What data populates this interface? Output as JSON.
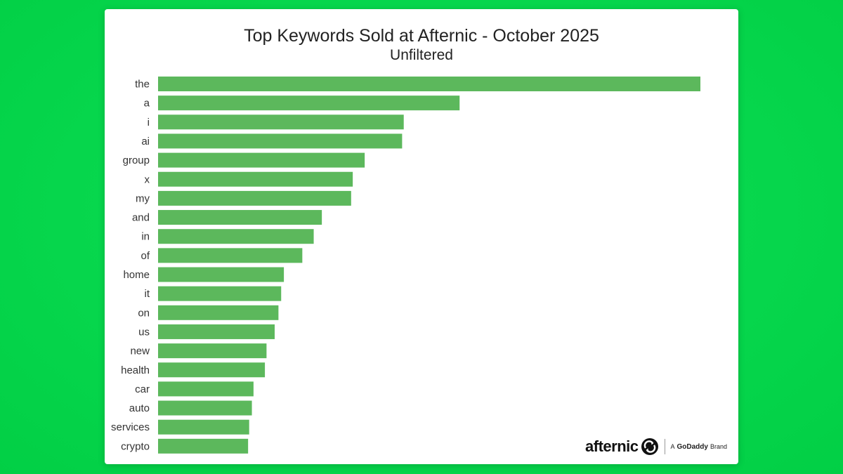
{
  "chart_data": {
    "type": "bar",
    "orientation": "horizontal",
    "title": "Top Keywords Sold at Afternic - October 2025",
    "subtitle": "Unfiltered",
    "categories": [
      "the",
      "a",
      "i",
      "ai",
      "group",
      "x",
      "my",
      "and",
      "in",
      "of",
      "home",
      "it",
      "on",
      "us",
      "new",
      "health",
      "car",
      "auto",
      "services",
      "crypto"
    ],
    "values": [
      100,
      55.6,
      45.3,
      45.0,
      38.1,
      35.9,
      35.6,
      30.2,
      28.7,
      26.6,
      23.2,
      22.7,
      22.2,
      21.5,
      20.0,
      19.7,
      17.6,
      17.3,
      16.8,
      16.6
    ],
    "xlim": [
      0,
      100
    ],
    "grid": false,
    "legend": "none",
    "bar_color": "#5cb85c"
  },
  "branding": {
    "logo_text": "afternic",
    "tagline_prefix": "A",
    "tagline_parent": "GoDaddy",
    "tagline_suffix": "Brand"
  },
  "colors": {
    "background": "#06d64c",
    "card": "#ffffff",
    "text": "#222222"
  }
}
